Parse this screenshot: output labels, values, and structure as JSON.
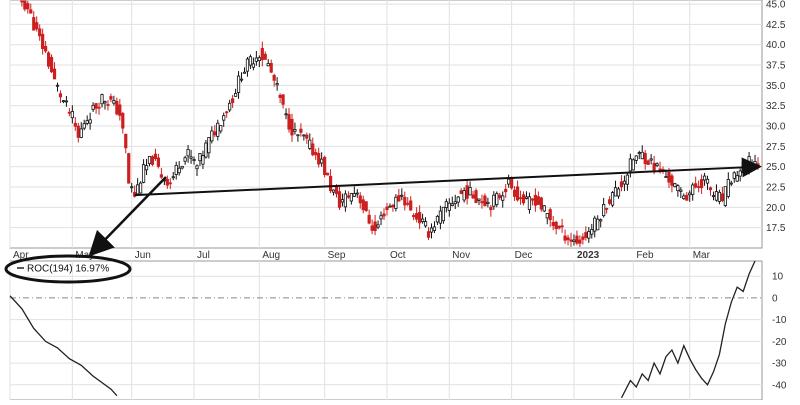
{
  "chart_data": [
    {
      "type": "candlestick",
      "panel": "price",
      "y_ticks": [
        17.5,
        20.0,
        22.5,
        25.0,
        27.5,
        30.0,
        32.5,
        35.0,
        37.5,
        40.0,
        42.5,
        45.0
      ],
      "y_tick_labels": [
        "17.5",
        "20.0",
        "22.5",
        "25.0",
        "27.5",
        "30.0",
        "32.5",
        "35.0",
        "37.5",
        "40.0",
        "42.5",
        "45.0"
      ],
      "ylim": [
        15.0,
        45.5
      ],
      "x_labels": [
        "Apr",
        "May",
        "Jun",
        "Jul",
        "Aug",
        "Sep",
        "Oct",
        "Nov",
        "Dec",
        "2023",
        "Feb",
        "Mar"
      ],
      "close_path": [
        [
          0,
          48.5
        ],
        [
          3,
          46.0
        ],
        [
          6,
          44.5
        ],
        [
          9,
          41.5
        ],
        [
          12,
          39.0
        ],
        [
          15,
          35.5
        ],
        [
          18,
          33.0
        ],
        [
          21,
          31.0
        ],
        [
          23,
          28.5
        ],
        [
          25,
          30.5
        ],
        [
          28,
          32.0
        ],
        [
          31,
          33.5
        ],
        [
          34,
          33.0
        ],
        [
          37,
          31.5
        ],
        [
          39,
          27.0
        ],
        [
          40,
          23.0
        ],
        [
          42,
          21.5
        ],
        [
          45,
          24.5
        ],
        [
          48,
          26.0
        ],
        [
          51,
          24.0
        ],
        [
          54,
          23.0
        ],
        [
          57,
          25.5
        ],
        [
          60,
          26.5
        ],
        [
          63,
          25.0
        ],
        [
          66,
          27.5
        ],
        [
          69,
          29.5
        ],
        [
          72,
          31.5
        ],
        [
          75,
          33.5
        ],
        [
          78,
          36.5
        ],
        [
          81,
          38.0
        ],
        [
          84,
          39.0
        ],
        [
          87,
          37.5
        ],
        [
          90,
          34.5
        ],
        [
          93,
          31.0
        ],
        [
          96,
          29.0
        ],
        [
          99,
          28.5
        ],
        [
          102,
          27.0
        ],
        [
          105,
          25.5
        ],
        [
          108,
          22.5
        ],
        [
          111,
          20.5
        ],
        [
          114,
          21.5
        ],
        [
          117,
          22.0
        ],
        [
          120,
          19.0
        ],
        [
          123,
          17.0
        ],
        [
          126,
          19.5
        ],
        [
          129,
          20.5
        ],
        [
          132,
          21.5
        ],
        [
          135,
          19.5
        ],
        [
          138,
          18.5
        ],
        [
          141,
          17.0
        ],
        [
          144,
          18.5
        ],
        [
          147,
          20.0
        ],
        [
          150,
          21.0
        ],
        [
          153,
          22.0
        ],
        [
          156,
          21.5
        ],
        [
          159,
          21.0
        ],
        [
          162,
          20.5
        ],
        [
          165,
          21.5
        ],
        [
          168,
          23.0
        ],
        [
          171,
          21.5
        ],
        [
          174,
          20.5
        ],
        [
          177,
          21.0
        ],
        [
          180,
          19.5
        ],
        [
          183,
          18.0
        ],
        [
          186,
          17.0
        ],
        [
          189,
          16.0
        ],
        [
          192,
          15.8
        ],
        [
          195,
          17.0
        ],
        [
          198,
          18.5
        ],
        [
          201,
          20.5
        ],
        [
          204,
          22.0
        ],
        [
          207,
          23.5
        ],
        [
          210,
          26.0
        ],
        [
          213,
          26.5
        ],
        [
          216,
          25.5
        ],
        [
          219,
          24.5
        ],
        [
          222,
          23.5
        ],
        [
          225,
          22.0
        ],
        [
          228,
          21.5
        ],
        [
          231,
          22.5
        ],
        [
          234,
          23.5
        ],
        [
          237,
          21.5
        ],
        [
          240,
          21.0
        ],
        [
          243,
          23.5
        ],
        [
          246,
          24.5
        ],
        [
          249,
          25.5
        ],
        [
          252,
          25.5
        ]
      ],
      "trendline": {
        "from": [
          42,
          21.5
        ],
        "to": [
          252,
          25.0
        ]
      }
    },
    {
      "type": "line",
      "panel": "indicator",
      "legend_label": "ROC(194)",
      "legend_value": "16.97%",
      "y_ticks": [
        10,
        0,
        -10,
        -20,
        -30,
        -40
      ],
      "y_tick_labels": [
        "10",
        "0",
        "-10",
        "-20",
        "-30",
        "-40"
      ],
      "ylim": [
        -47,
        17
      ],
      "zero_line": 0,
      "segments": [
        [
          [
            0,
            1
          ],
          [
            4,
            -5
          ],
          [
            8,
            -14
          ],
          [
            12,
            -20
          ],
          [
            16,
            -23
          ],
          [
            20,
            -28
          ],
          [
            24,
            -31
          ],
          [
            28,
            -36
          ],
          [
            31,
            -39
          ],
          [
            34,
            -42
          ],
          [
            36,
            -45
          ]
        ],
        [
          [
            206,
            -46
          ],
          [
            209,
            -38
          ],
          [
            211,
            -41
          ],
          [
            213,
            -35
          ],
          [
            215,
            -38
          ],
          [
            217,
            -30
          ],
          [
            219,
            -35
          ],
          [
            221,
            -27
          ],
          [
            223,
            -24
          ],
          [
            225,
            -30
          ],
          [
            227,
            -22
          ],
          [
            229,
            -28
          ],
          [
            231,
            -33
          ],
          [
            233,
            -37
          ],
          [
            235,
            -40
          ],
          [
            237,
            -34
          ],
          [
            239,
            -26
          ],
          [
            241,
            -12
          ],
          [
            243,
            -2
          ],
          [
            245,
            5
          ],
          [
            247,
            3
          ],
          [
            249,
            11
          ],
          [
            251,
            17
          ]
        ]
      ]
    }
  ]
}
